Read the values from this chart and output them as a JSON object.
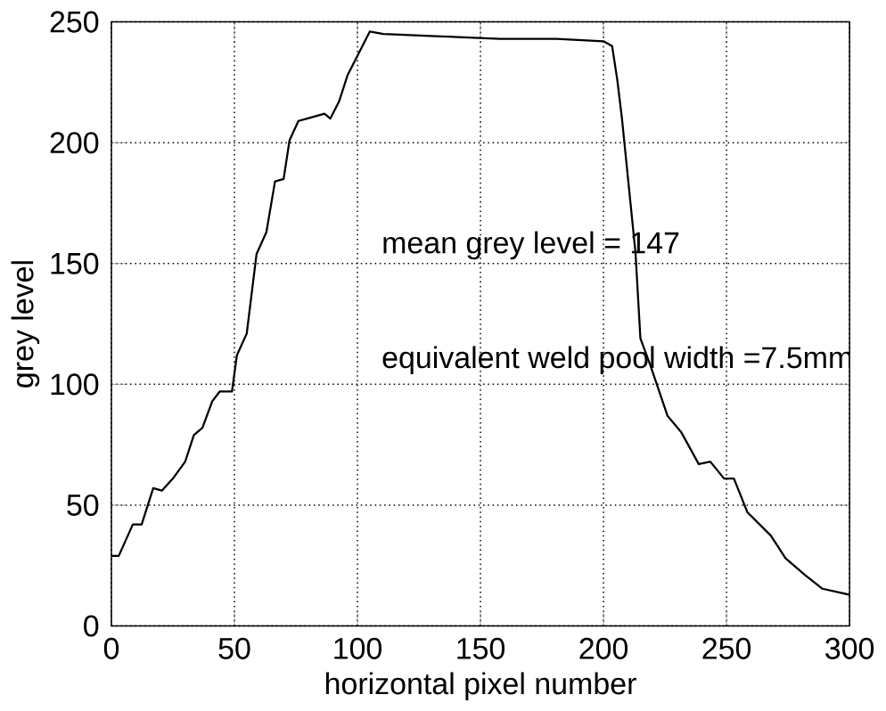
{
  "chart_data": {
    "type": "line",
    "xlabel": "horizontal pixel number",
    "ylabel": "grey level",
    "xlim": [
      0,
      300
    ],
    "ylim": [
      0,
      250
    ],
    "xticks": [
      0,
      50,
      100,
      150,
      200,
      250,
      300
    ],
    "yticks": [
      0,
      50,
      100,
      150,
      200,
      250
    ],
    "grid": true,
    "color": "#000000",
    "x": [
      0,
      3,
      8.7,
      12.3,
      17,
      20.5,
      25,
      30,
      33.5,
      37,
      41,
      44,
      49,
      51,
      55,
      59,
      63,
      66.5,
      70,
      72.4,
      76,
      79.5,
      86.6,
      89,
      92.5,
      96,
      98,
      99,
      105,
      110.5,
      134,
      158,
      181,
      200,
      203.5,
      205.6,
      207.5,
      213,
      215,
      219,
      226,
      231.7,
      238.7,
      243.4,
      249,
      253,
      258.5,
      268,
      274,
      282,
      289,
      300
    ],
    "values": [
      29,
      29,
      42,
      42,
      57,
      56,
      61,
      68,
      79,
      82,
      93,
      97,
      97,
      112,
      121,
      154,
      163,
      184,
      185,
      201,
      209,
      210,
      212,
      210,
      217,
      228,
      232,
      234,
      246,
      245,
      244,
      243,
      243,
      242,
      240,
      226,
      210,
      154.5,
      119,
      108,
      87,
      80,
      67,
      68,
      61,
      61,
      47,
      37.4,
      28,
      21,
      15.4,
      12.9
    ],
    "annotations": [
      "mean grey level = 147",
      "equivalent weld pool width =7.5mm"
    ]
  }
}
